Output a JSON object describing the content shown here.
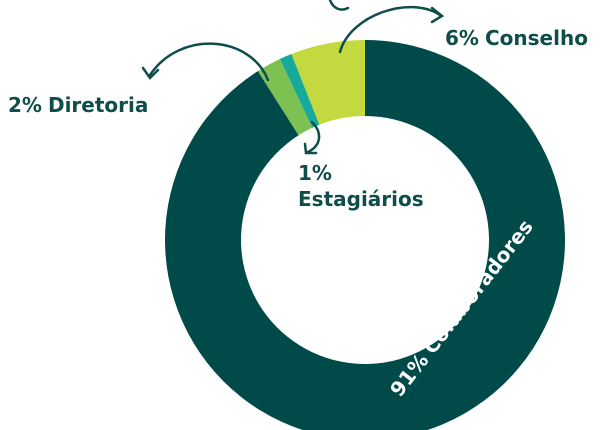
{
  "chart_data": {
    "type": "donut",
    "categories": [
      "Colaboradores",
      "Diretoria",
      "Estagiários",
      "Conselho"
    ],
    "values": [
      91,
      2,
      1,
      6
    ],
    "value_labels": [
      "91%",
      "2%",
      "1%",
      "6%"
    ],
    "colors": [
      "#004a4a",
      "#7cc152",
      "#17a99a",
      "#c4d93f"
    ]
  }
}
